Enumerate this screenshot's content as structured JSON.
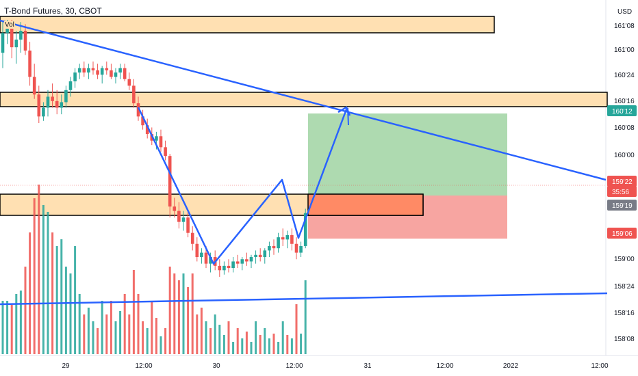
{
  "symbol_title": "T-Bond Futures, 30, CBOT",
  "volume_label": "Vol",
  "currency": "USD",
  "colors": {
    "up": "#26a69a",
    "down": "#ef5350",
    "trend": "#2962ff",
    "zone_fill": "#ffe0b2",
    "target_fill": "#a5d6a7",
    "stop_fill": "#f7a09c",
    "entry_fill": "#ff8a65"
  },
  "chart_data": {
    "type": "candlestick",
    "title": "T-Bond Futures, 30, CBOT",
    "y_unit": "USD",
    "price_ticks": [
      "161'08",
      "161'00",
      "160'24",
      "160'16",
      "160'08",
      "160'00",
      "159'24",
      "159'16",
      "159'08",
      "159'00",
      "158'24",
      "158'16",
      "158'08"
    ],
    "x_ticks": [
      "29",
      "12:00",
      "30",
      "12:00",
      "31",
      "12:00",
      "2022",
      "12:00"
    ],
    "price_tags": [
      {
        "label": "160'12",
        "color": "#26a69a"
      },
      {
        "label": "159'22",
        "color": "#ef5350"
      },
      {
        "label": "35:56",
        "color": "#ef5350"
      },
      {
        "label": "159'19",
        "color": "#787b86"
      },
      {
        "label": "159'06",
        "color": "#ef5350"
      }
    ],
    "candles": [
      [
        161.0,
        161.28,
        160.86,
        161.18
      ],
      [
        161.18,
        161.3,
        161.08,
        161.25
      ],
      [
        161.25,
        161.3,
        160.95,
        161.05
      ],
      [
        161.05,
        161.2,
        160.9,
        161.12
      ],
      [
        161.12,
        161.28,
        161.0,
        161.2
      ],
      [
        161.2,
        161.26,
        160.98,
        161.02
      ],
      [
        161.02,
        161.1,
        160.7,
        160.78
      ],
      [
        160.78,
        160.9,
        160.58,
        160.62
      ],
      [
        160.62,
        160.7,
        160.36,
        160.42
      ],
      [
        160.42,
        160.55,
        160.38,
        160.5
      ],
      [
        160.5,
        160.66,
        160.42,
        160.6
      ],
      [
        160.6,
        160.72,
        160.5,
        160.56
      ],
      [
        160.56,
        160.66,
        160.44,
        160.5
      ],
      [
        160.5,
        160.62,
        160.44,
        160.55
      ],
      [
        160.55,
        160.7,
        160.5,
        160.66
      ],
      [
        160.66,
        160.78,
        160.6,
        160.74
      ],
      [
        160.74,
        160.86,
        160.68,
        160.82
      ],
      [
        160.82,
        160.9,
        160.76,
        160.86
      ],
      [
        160.86,
        160.92,
        160.78,
        160.82
      ],
      [
        160.82,
        160.9,
        160.76,
        160.86
      ],
      [
        160.86,
        160.92,
        160.8,
        160.84
      ],
      [
        160.84,
        160.9,
        160.76,
        160.8
      ],
      [
        160.8,
        160.88,
        160.72,
        160.86
      ],
      [
        160.86,
        160.92,
        160.8,
        160.84
      ],
      [
        160.84,
        160.9,
        160.76,
        160.78
      ],
      [
        160.78,
        160.86,
        160.72,
        160.82
      ],
      [
        160.82,
        160.9,
        160.76,
        160.86
      ],
      [
        160.86,
        160.9,
        160.74,
        160.76
      ],
      [
        160.76,
        160.82,
        160.66,
        160.7
      ],
      [
        160.7,
        160.76,
        160.5,
        160.54
      ],
      [
        160.54,
        160.6,
        160.38,
        160.42
      ],
      [
        160.42,
        160.48,
        160.3,
        160.34
      ],
      [
        160.34,
        160.4,
        160.22,
        160.26
      ],
      [
        160.26,
        160.32,
        160.16,
        160.2
      ],
      [
        160.2,
        160.28,
        160.12,
        160.24
      ],
      [
        160.24,
        160.3,
        160.1,
        160.14
      ],
      [
        160.14,
        160.2,
        160.02,
        160.06
      ],
      [
        160.06,
        160.08,
        159.5,
        159.6
      ],
      [
        159.6,
        159.68,
        159.5,
        159.56
      ],
      [
        159.56,
        159.64,
        159.4,
        159.46
      ],
      [
        159.46,
        159.56,
        159.38,
        159.5
      ],
      [
        159.5,
        159.56,
        159.32,
        159.36
      ],
      [
        159.36,
        159.42,
        159.2,
        159.26
      ],
      [
        159.26,
        159.32,
        159.1,
        159.14
      ],
      [
        159.14,
        159.22,
        159.08,
        159.18
      ],
      [
        159.18,
        159.24,
        159.04,
        159.08
      ],
      [
        159.08,
        159.18,
        159.0,
        159.14
      ],
      [
        159.14,
        159.2,
        159.02,
        159.06
      ],
      [
        159.06,
        159.12,
        158.96,
        159.02
      ],
      [
        159.02,
        159.1,
        158.98,
        159.06
      ],
      [
        159.06,
        159.12,
        159.0,
        159.04
      ],
      [
        159.04,
        159.14,
        159.0,
        159.1
      ],
      [
        159.1,
        159.16,
        159.04,
        159.08
      ],
      [
        159.08,
        159.14,
        159.02,
        159.12
      ],
      [
        159.12,
        159.18,
        159.06,
        159.1
      ],
      [
        159.1,
        159.16,
        159.04,
        159.14
      ],
      [
        159.14,
        159.2,
        159.08,
        159.16
      ],
      [
        159.16,
        159.22,
        159.1,
        159.14
      ],
      [
        159.14,
        159.22,
        159.08,
        159.2
      ],
      [
        159.2,
        159.28,
        159.14,
        159.24
      ],
      [
        159.24,
        159.3,
        159.16,
        159.22
      ],
      [
        159.22,
        159.36,
        159.18,
        159.32
      ],
      [
        159.32,
        159.4,
        159.24,
        159.3
      ],
      [
        159.3,
        159.38,
        159.22,
        159.34
      ],
      [
        159.34,
        159.4,
        159.2,
        159.26
      ],
      [
        159.26,
        159.32,
        159.12,
        159.18
      ],
      [
        159.18,
        159.28,
        159.14,
        159.24
      ],
      [
        159.24,
        159.58,
        159.22,
        159.54
      ]
    ],
    "volume": [
      [
        440,
        1
      ],
      [
        440,
        1
      ],
      [
        446,
        0
      ],
      [
        430,
        1
      ],
      [
        425,
        1
      ],
      [
        390,
        0
      ],
      [
        340,
        0
      ],
      [
        290,
        0
      ],
      [
        270,
        0
      ],
      [
        300,
        1
      ],
      [
        310,
        1
      ],
      [
        340,
        0
      ],
      [
        360,
        1
      ],
      [
        350,
        1
      ],
      [
        390,
        1
      ],
      [
        400,
        1
      ],
      [
        360,
        1
      ],
      [
        430,
        1
      ],
      [
        460,
        0
      ],
      [
        450,
        1
      ],
      [
        470,
        1
      ],
      [
        480,
        0
      ],
      [
        440,
        1
      ],
      [
        460,
        0
      ],
      [
        440,
        0
      ],
      [
        470,
        1
      ],
      [
        455,
        1
      ],
      [
        430,
        0
      ],
      [
        460,
        0
      ],
      [
        395,
        0
      ],
      [
        430,
        0
      ],
      [
        470,
        0
      ],
      [
        480,
        1
      ],
      [
        440,
        0
      ],
      [
        465,
        0
      ],
      [
        492,
        1
      ],
      [
        480,
        0
      ],
      [
        390,
        0
      ],
      [
        400,
        0
      ],
      [
        410,
        0
      ],
      [
        400,
        1
      ],
      [
        420,
        0
      ],
      [
        400,
        0
      ],
      [
        460,
        0
      ],
      [
        450,
        0
      ],
      [
        470,
        1
      ],
      [
        480,
        0
      ],
      [
        460,
        1
      ],
      [
        475,
        1
      ],
      [
        490,
        1
      ],
      [
        470,
        0
      ],
      [
        500,
        1
      ],
      [
        480,
        0
      ],
      [
        495,
        1
      ],
      [
        485,
        0
      ],
      [
        500,
        1
      ],
      [
        470,
        1
      ],
      [
        490,
        0
      ],
      [
        480,
        1
      ],
      [
        495,
        1
      ],
      [
        488,
        0
      ],
      [
        500,
        1
      ],
      [
        470,
        1
      ],
      [
        490,
        0
      ],
      [
        495,
        1
      ],
      [
        445,
        0
      ],
      [
        488,
        1
      ],
      [
        410,
        1
      ]
    ]
  }
}
